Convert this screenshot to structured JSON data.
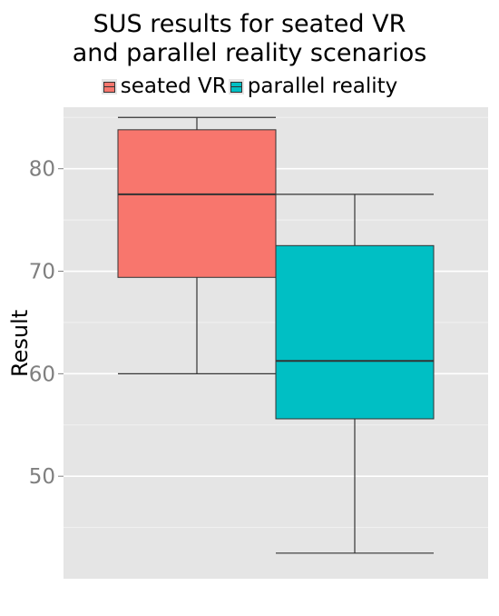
{
  "chart_data": {
    "type": "box",
    "title_line1": "SUS results for seated VR",
    "title_line2": "and parallel reality scenarios",
    "xlabel": "",
    "ylabel": "Result",
    "ylim": [
      40,
      86
    ],
    "yticks": [
      50,
      60,
      70,
      80
    ],
    "legend_position": "top",
    "grid": true,
    "series": [
      {
        "name": "seated VR",
        "color": "#f8766d",
        "min": 60,
        "q1": 69.4,
        "median": 77.5,
        "q3": 83.8,
        "max": 85
      },
      {
        "name": "parallel reality",
        "color": "#00bfc4",
        "min": 42.5,
        "q1": 55.6,
        "median": 61.25,
        "q3": 72.5,
        "max": 77.5
      }
    ]
  }
}
